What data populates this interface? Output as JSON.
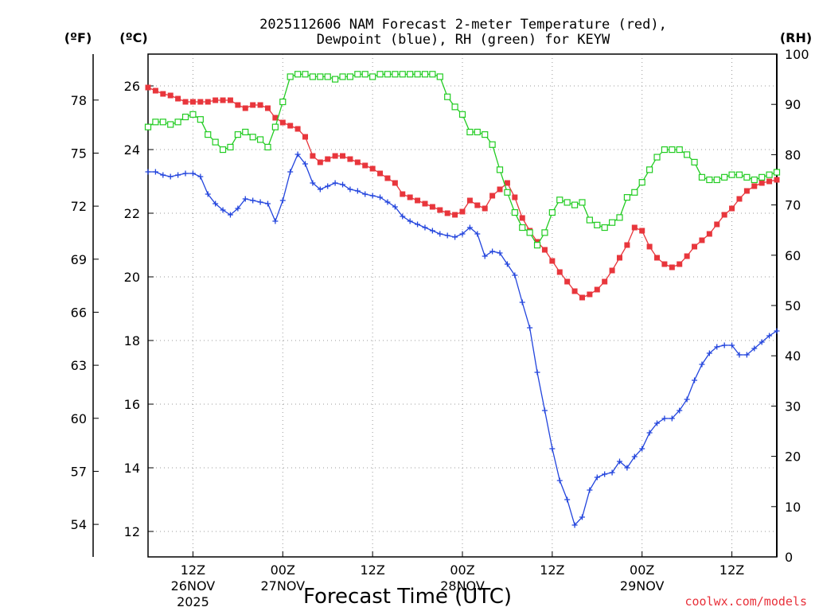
{
  "chart_data": {
    "type": "line",
    "title_line1": "2025112606 NAM Forecast 2-meter Temperature (red),",
    "title_line2": "Dewpoint (blue), RH (green) for KEYW",
    "xlabel": "Forecast Time (UTC)",
    "watermark": "coolwx.com/models",
    "unit_f": "(ºF)",
    "unit_c": "(ºC)",
    "unit_rh": "(RH)",
    "x_unit": "hours since 2025-11-26 06Z",
    "xlim": [
      0,
      84
    ],
    "ylim_c": [
      11.2,
      27.0
    ],
    "ylim_rh": [
      0,
      100
    ],
    "grid": true,
    "x_ticks": [
      {
        "x": 6,
        "label": "12Z",
        "sub1": "26NOV",
        "sub2": "2025"
      },
      {
        "x": 18,
        "label": "00Z",
        "sub1": "27NOV",
        "sub2": ""
      },
      {
        "x": 30,
        "label": "12Z",
        "sub1": "",
        "sub2": ""
      },
      {
        "x": 42,
        "label": "00Z",
        "sub1": "28NOV",
        "sub2": ""
      },
      {
        "x": 54,
        "label": "12Z",
        "sub1": "",
        "sub2": ""
      },
      {
        "x": 66,
        "label": "00Z",
        "sub1": "29NOV",
        "sub2": ""
      },
      {
        "x": 78,
        "label": "12Z",
        "sub1": "",
        "sub2": ""
      }
    ],
    "celsius_ticks": [
      {
        "value": 12,
        "label": "12"
      },
      {
        "value": 14,
        "label": "14"
      },
      {
        "value": 16,
        "label": "16"
      },
      {
        "value": 18,
        "label": "18"
      },
      {
        "value": 20,
        "label": "20"
      },
      {
        "value": 22,
        "label": "22"
      },
      {
        "value": 24,
        "label": "24"
      },
      {
        "value": 26,
        "label": "26"
      }
    ],
    "fahrenheit_ticks": [
      {
        "value": 54,
        "label": "54"
      },
      {
        "value": 57,
        "label": "57"
      },
      {
        "value": 60,
        "label": "60"
      },
      {
        "value": 63,
        "label": "63"
      },
      {
        "value": 66,
        "label": "66"
      },
      {
        "value": 69,
        "label": "69"
      },
      {
        "value": 72,
        "label": "72"
      },
      {
        "value": 75,
        "label": "75"
      },
      {
        "value": 78,
        "label": "78"
      }
    ],
    "rh_ticks": [
      {
        "value": 0,
        "label": "0"
      },
      {
        "value": 10,
        "label": "10"
      },
      {
        "value": 20,
        "label": "20"
      },
      {
        "value": 30,
        "label": "30"
      },
      {
        "value": 40,
        "label": "40"
      },
      {
        "value": 50,
        "label": "50"
      },
      {
        "value": 60,
        "label": "60"
      },
      {
        "value": 70,
        "label": "70"
      },
      {
        "value": 80,
        "label": "80"
      },
      {
        "value": 90,
        "label": "90"
      },
      {
        "value": 100,
        "label": "100"
      }
    ],
    "series": [
      {
        "name": "Temperature",
        "color": "#e8363c",
        "marker": "filled-square",
        "axis": "celsius",
        "points": [
          [
            0,
            25.95
          ],
          [
            1,
            25.85
          ],
          [
            2,
            25.75
          ],
          [
            3,
            25.7
          ],
          [
            4,
            25.6
          ],
          [
            5,
            25.5
          ],
          [
            6,
            25.5
          ],
          [
            7,
            25.5
          ],
          [
            8,
            25.5
          ],
          [
            9,
            25.55
          ],
          [
            10,
            25.55
          ],
          [
            11,
            25.55
          ],
          [
            12,
            25.4
          ],
          [
            13,
            25.3
          ],
          [
            14,
            25.4
          ],
          [
            15,
            25.4
          ],
          [
            16,
            25.3
          ],
          [
            17,
            25.0
          ],
          [
            18,
            24.85
          ],
          [
            19,
            24.75
          ],
          [
            20,
            24.65
          ],
          [
            21,
            24.4
          ],
          [
            22,
            23.8
          ],
          [
            23,
            23.6
          ],
          [
            24,
            23.7
          ],
          [
            25,
            23.8
          ],
          [
            26,
            23.8
          ],
          [
            27,
            23.7
          ],
          [
            28,
            23.6
          ],
          [
            29,
            23.5
          ],
          [
            30,
            23.4
          ],
          [
            31,
            23.25
          ],
          [
            32,
            23.1
          ],
          [
            33,
            22.95
          ],
          [
            34,
            22.6
          ],
          [
            35,
            22.5
          ],
          [
            36,
            22.4
          ],
          [
            37,
            22.3
          ],
          [
            38,
            22.2
          ],
          [
            39,
            22.1
          ],
          [
            40,
            22.0
          ],
          [
            41,
            21.95
          ],
          [
            42,
            22.05
          ],
          [
            43,
            22.4
          ],
          [
            44,
            22.25
          ],
          [
            45,
            22.15
          ],
          [
            46,
            22.55
          ],
          [
            47,
            22.75
          ],
          [
            48,
            22.95
          ],
          [
            49,
            22.5
          ],
          [
            50,
            21.85
          ],
          [
            51,
            21.45
          ],
          [
            52,
            21.1
          ],
          [
            53,
            20.85
          ],
          [
            54,
            20.5
          ],
          [
            55,
            20.15
          ],
          [
            56,
            19.85
          ],
          [
            57,
            19.55
          ],
          [
            58,
            19.35
          ],
          [
            59,
            19.45
          ],
          [
            60,
            19.6
          ],
          [
            61,
            19.85
          ],
          [
            62,
            20.2
          ],
          [
            63,
            20.6
          ],
          [
            64,
            21.0
          ],
          [
            65,
            21.55
          ],
          [
            66,
            21.45
          ],
          [
            67,
            20.95
          ],
          [
            68,
            20.6
          ],
          [
            69,
            20.4
          ],
          [
            70,
            20.3
          ],
          [
            71,
            20.4
          ],
          [
            72,
            20.65
          ],
          [
            73,
            20.95
          ],
          [
            74,
            21.15
          ],
          [
            75,
            21.35
          ],
          [
            76,
            21.65
          ],
          [
            77,
            21.95
          ],
          [
            78,
            22.15
          ],
          [
            79,
            22.45
          ],
          [
            80,
            22.7
          ],
          [
            81,
            22.85
          ],
          [
            82,
            22.95
          ],
          [
            83,
            23.0
          ],
          [
            84,
            23.05
          ]
        ]
      },
      {
        "name": "Dewpoint",
        "color": "#2244dd",
        "marker": "plus",
        "axis": "celsius",
        "points": [
          [
            0,
            23.3
          ],
          [
            1,
            23.3
          ],
          [
            2,
            23.2
          ],
          [
            3,
            23.15
          ],
          [
            4,
            23.2
          ],
          [
            5,
            23.25
          ],
          [
            6,
            23.25
          ],
          [
            7,
            23.15
          ],
          [
            8,
            22.6
          ],
          [
            9,
            22.3
          ],
          [
            10,
            22.1
          ],
          [
            11,
            21.95
          ],
          [
            12,
            22.15
          ],
          [
            13,
            22.45
          ],
          [
            14,
            22.4
          ],
          [
            15,
            22.35
          ],
          [
            16,
            22.3
          ],
          [
            17,
            21.75
          ],
          [
            18,
            22.4
          ],
          [
            19,
            23.3
          ],
          [
            20,
            23.85
          ],
          [
            21,
            23.55
          ],
          [
            22,
            22.95
          ],
          [
            23,
            22.75
          ],
          [
            24,
            22.85
          ],
          [
            25,
            22.95
          ],
          [
            26,
            22.9
          ],
          [
            27,
            22.75
          ],
          [
            28,
            22.7
          ],
          [
            29,
            22.6
          ],
          [
            30,
            22.55
          ],
          [
            31,
            22.5
          ],
          [
            32,
            22.35
          ],
          [
            33,
            22.2
          ],
          [
            34,
            21.9
          ],
          [
            35,
            21.75
          ],
          [
            36,
            21.65
          ],
          [
            37,
            21.55
          ],
          [
            38,
            21.45
          ],
          [
            39,
            21.35
          ],
          [
            40,
            21.3
          ],
          [
            41,
            21.25
          ],
          [
            42,
            21.35
          ],
          [
            43,
            21.55
          ],
          [
            44,
            21.35
          ],
          [
            45,
            20.65
          ],
          [
            46,
            20.8
          ],
          [
            47,
            20.75
          ],
          [
            48,
            20.4
          ],
          [
            49,
            20.05
          ],
          [
            50,
            19.2
          ],
          [
            51,
            18.4
          ],
          [
            52,
            17.0
          ],
          [
            53,
            15.8
          ],
          [
            54,
            14.6
          ],
          [
            55,
            13.6
          ],
          [
            56,
            13.0
          ],
          [
            57,
            12.2
          ],
          [
            58,
            12.45
          ],
          [
            59,
            13.3
          ],
          [
            60,
            13.7
          ],
          [
            61,
            13.8
          ],
          [
            62,
            13.85
          ],
          [
            63,
            14.2
          ],
          [
            64,
            14.0
          ],
          [
            65,
            14.35
          ],
          [
            66,
            14.6
          ],
          [
            67,
            15.1
          ],
          [
            68,
            15.4
          ],
          [
            69,
            15.55
          ],
          [
            70,
            15.55
          ],
          [
            71,
            15.8
          ],
          [
            72,
            16.15
          ],
          [
            73,
            16.75
          ],
          [
            74,
            17.25
          ],
          [
            75,
            17.6
          ],
          [
            76,
            17.8
          ],
          [
            77,
            17.85
          ],
          [
            78,
            17.85
          ],
          [
            79,
            17.55
          ],
          [
            80,
            17.55
          ],
          [
            81,
            17.75
          ],
          [
            82,
            17.95
          ],
          [
            83,
            18.15
          ],
          [
            84,
            18.3
          ]
        ]
      },
      {
        "name": "RH",
        "color": "#22cc22",
        "marker": "open-square",
        "axis": "rh",
        "points": [
          [
            0,
            85.5
          ],
          [
            1,
            86.5
          ],
          [
            2,
            86.5
          ],
          [
            3,
            86.0
          ],
          [
            4,
            86.5
          ],
          [
            5,
            87.5
          ],
          [
            6,
            88.0
          ],
          [
            7,
            87.0
          ],
          [
            8,
            84.0
          ],
          [
            9,
            82.5
          ],
          [
            10,
            81.0
          ],
          [
            11,
            81.5
          ],
          [
            12,
            84.0
          ],
          [
            13,
            84.5
          ],
          [
            14,
            83.5
          ],
          [
            15,
            83.0
          ],
          [
            16,
            81.5
          ],
          [
            17,
            85.5
          ],
          [
            18,
            90.5
          ],
          [
            19,
            95.5
          ],
          [
            20,
            96.0
          ],
          [
            21,
            96.0
          ],
          [
            22,
            95.5
          ],
          [
            23,
            95.5
          ],
          [
            24,
            95.5
          ],
          [
            25,
            95.0
          ],
          [
            26,
            95.5
          ],
          [
            27,
            95.5
          ],
          [
            28,
            96.0
          ],
          [
            29,
            96.0
          ],
          [
            30,
            95.5
          ],
          [
            31,
            96.0
          ],
          [
            32,
            96.0
          ],
          [
            33,
            96.0
          ],
          [
            34,
            96.0
          ],
          [
            35,
            96.0
          ],
          [
            36,
            96.0
          ],
          [
            37,
            96.0
          ],
          [
            38,
            96.0
          ],
          [
            39,
            95.5
          ],
          [
            40,
            91.5
          ],
          [
            41,
            89.5
          ],
          [
            42,
            88.0
          ],
          [
            43,
            84.5
          ],
          [
            44,
            84.5
          ],
          [
            45,
            84.0
          ],
          [
            46,
            82.0
          ],
          [
            47,
            77.0
          ],
          [
            48,
            72.5
          ],
          [
            49,
            68.5
          ],
          [
            50,
            65.5
          ],
          [
            51,
            64.5
          ],
          [
            52,
            62.0
          ],
          [
            53,
            64.5
          ],
          [
            54,
            68.5
          ],
          [
            55,
            71.0
          ],
          [
            56,
            70.5
          ],
          [
            57,
            70.0
          ],
          [
            58,
            70.5
          ],
          [
            59,
            67.0
          ],
          [
            60,
            66.0
          ],
          [
            61,
            65.5
          ],
          [
            62,
            66.5
          ],
          [
            63,
            67.5
          ],
          [
            64,
            71.5
          ],
          [
            65,
            72.5
          ],
          [
            66,
            74.5
          ],
          [
            67,
            77.0
          ],
          [
            68,
            79.5
          ],
          [
            69,
            81.0
          ],
          [
            70,
            81.0
          ],
          [
            71,
            81.0
          ],
          [
            72,
            80.0
          ],
          [
            73,
            78.5
          ],
          [
            74,
            75.5
          ],
          [
            75,
            75.0
          ],
          [
            76,
            75.0
          ],
          [
            77,
            75.5
          ],
          [
            78,
            76.0
          ],
          [
            79,
            76.0
          ],
          [
            80,
            75.5
          ],
          [
            81,
            75.0
          ],
          [
            82,
            75.5
          ],
          [
            83,
            76.0
          ],
          [
            84,
            76.5
          ]
        ]
      }
    ]
  }
}
